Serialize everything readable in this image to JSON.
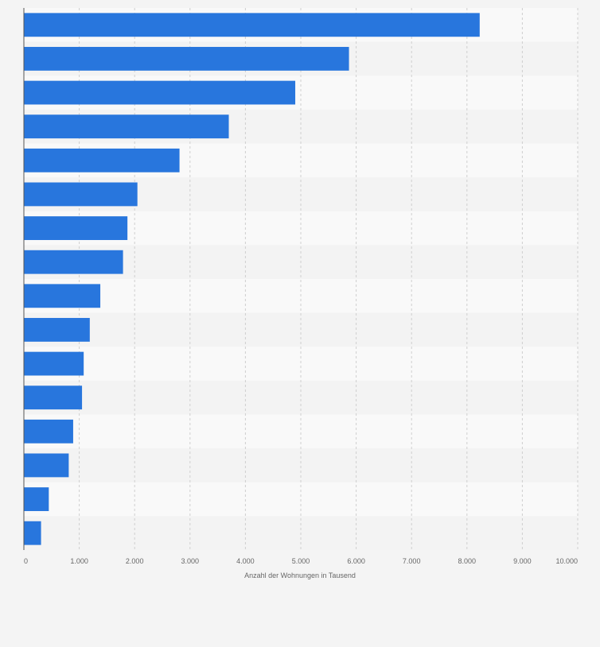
{
  "chart_data": {
    "type": "bar",
    "orientation": "horizontal",
    "title": "",
    "xlabel": "Anzahl der Wohnungen in Tausend",
    "ylabel": "",
    "xlim": [
      0,
      10000
    ],
    "x_ticks": [
      0,
      1000,
      2000,
      3000,
      4000,
      5000,
      6000,
      7000,
      8000,
      9000,
      10000
    ],
    "x_tick_labels": [
      "0",
      "1.000",
      "2.000",
      "3.000",
      "4.000",
      "5.000",
      "6.000",
      "7.000",
      "8.000",
      "9.000",
      "10.000"
    ],
    "categories": [
      "",
      "",
      "",
      "",
      "",
      "",
      "",
      "",
      "",
      "",
      "",
      "",
      "",
      "",
      "",
      ""
    ],
    "values": [
      8230,
      5870,
      4900,
      3700,
      2810,
      2050,
      1870,
      1790,
      1380,
      1190,
      1080,
      1050,
      890,
      810,
      450,
      310
    ],
    "grid": true,
    "legend": "none",
    "colors": {
      "bar": "#2876dd",
      "band_light": "#f9f9f9",
      "band_dark": "#f3f3f3",
      "grid": "#cfcfcf",
      "axis": "#555555",
      "text": "#666666",
      "background": "#f4f4f4"
    }
  }
}
